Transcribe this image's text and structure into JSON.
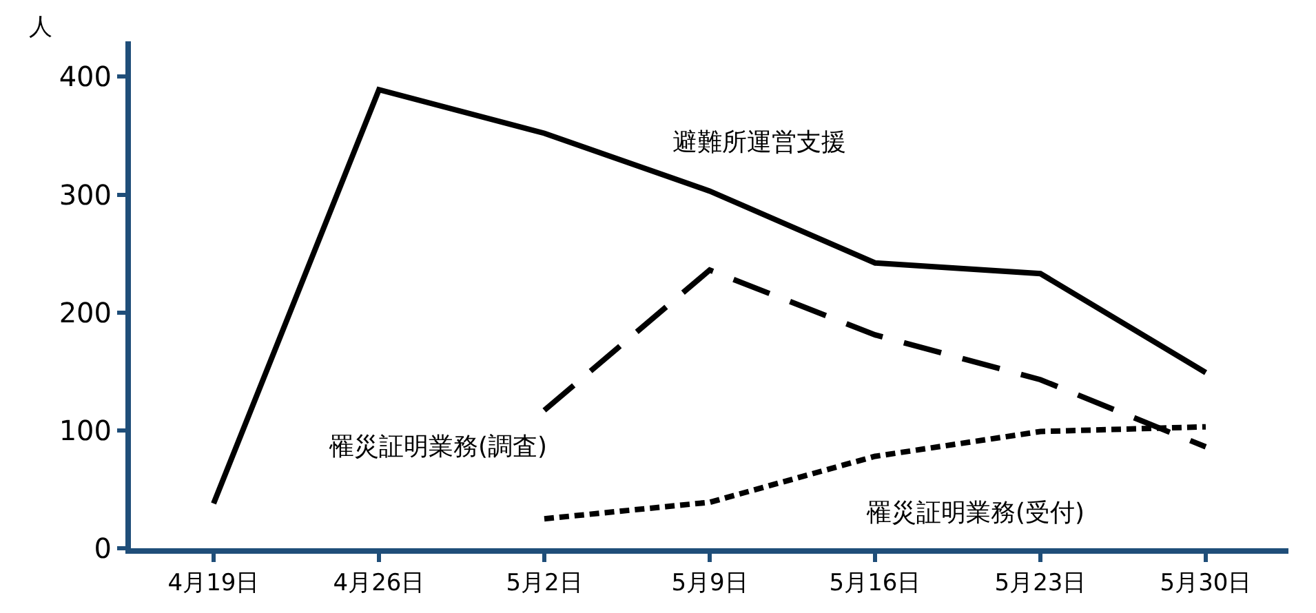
{
  "chart_data": {
    "type": "line",
    "ylabel": "人",
    "categories": [
      "4月19日",
      "4月26日",
      "5月2日",
      "5月9日",
      "5月16日",
      "5月23日",
      "5月30日"
    ],
    "ylim": [
      0,
      430
    ],
    "yticks": [
      0,
      100,
      200,
      300,
      400
    ],
    "legend": false,
    "marker": "none",
    "series": [
      {
        "name": "避難所運営支援",
        "color": "#000000",
        "line_style": "solid",
        "values": [
          38,
          389,
          352,
          303,
          242,
          233,
          149
        ]
      },
      {
        "name": "罹災証明業務(調査)",
        "color": "#000000",
        "line_style": "dashed",
        "values": [
          null,
          null,
          117,
          236,
          181,
          143,
          86
        ]
      },
      {
        "name": "罹災証明業務(受付)",
        "color": "#000000",
        "line_style": "dotted",
        "values": [
          null,
          null,
          25,
          39,
          78,
          99,
          103
        ]
      }
    ]
  }
}
